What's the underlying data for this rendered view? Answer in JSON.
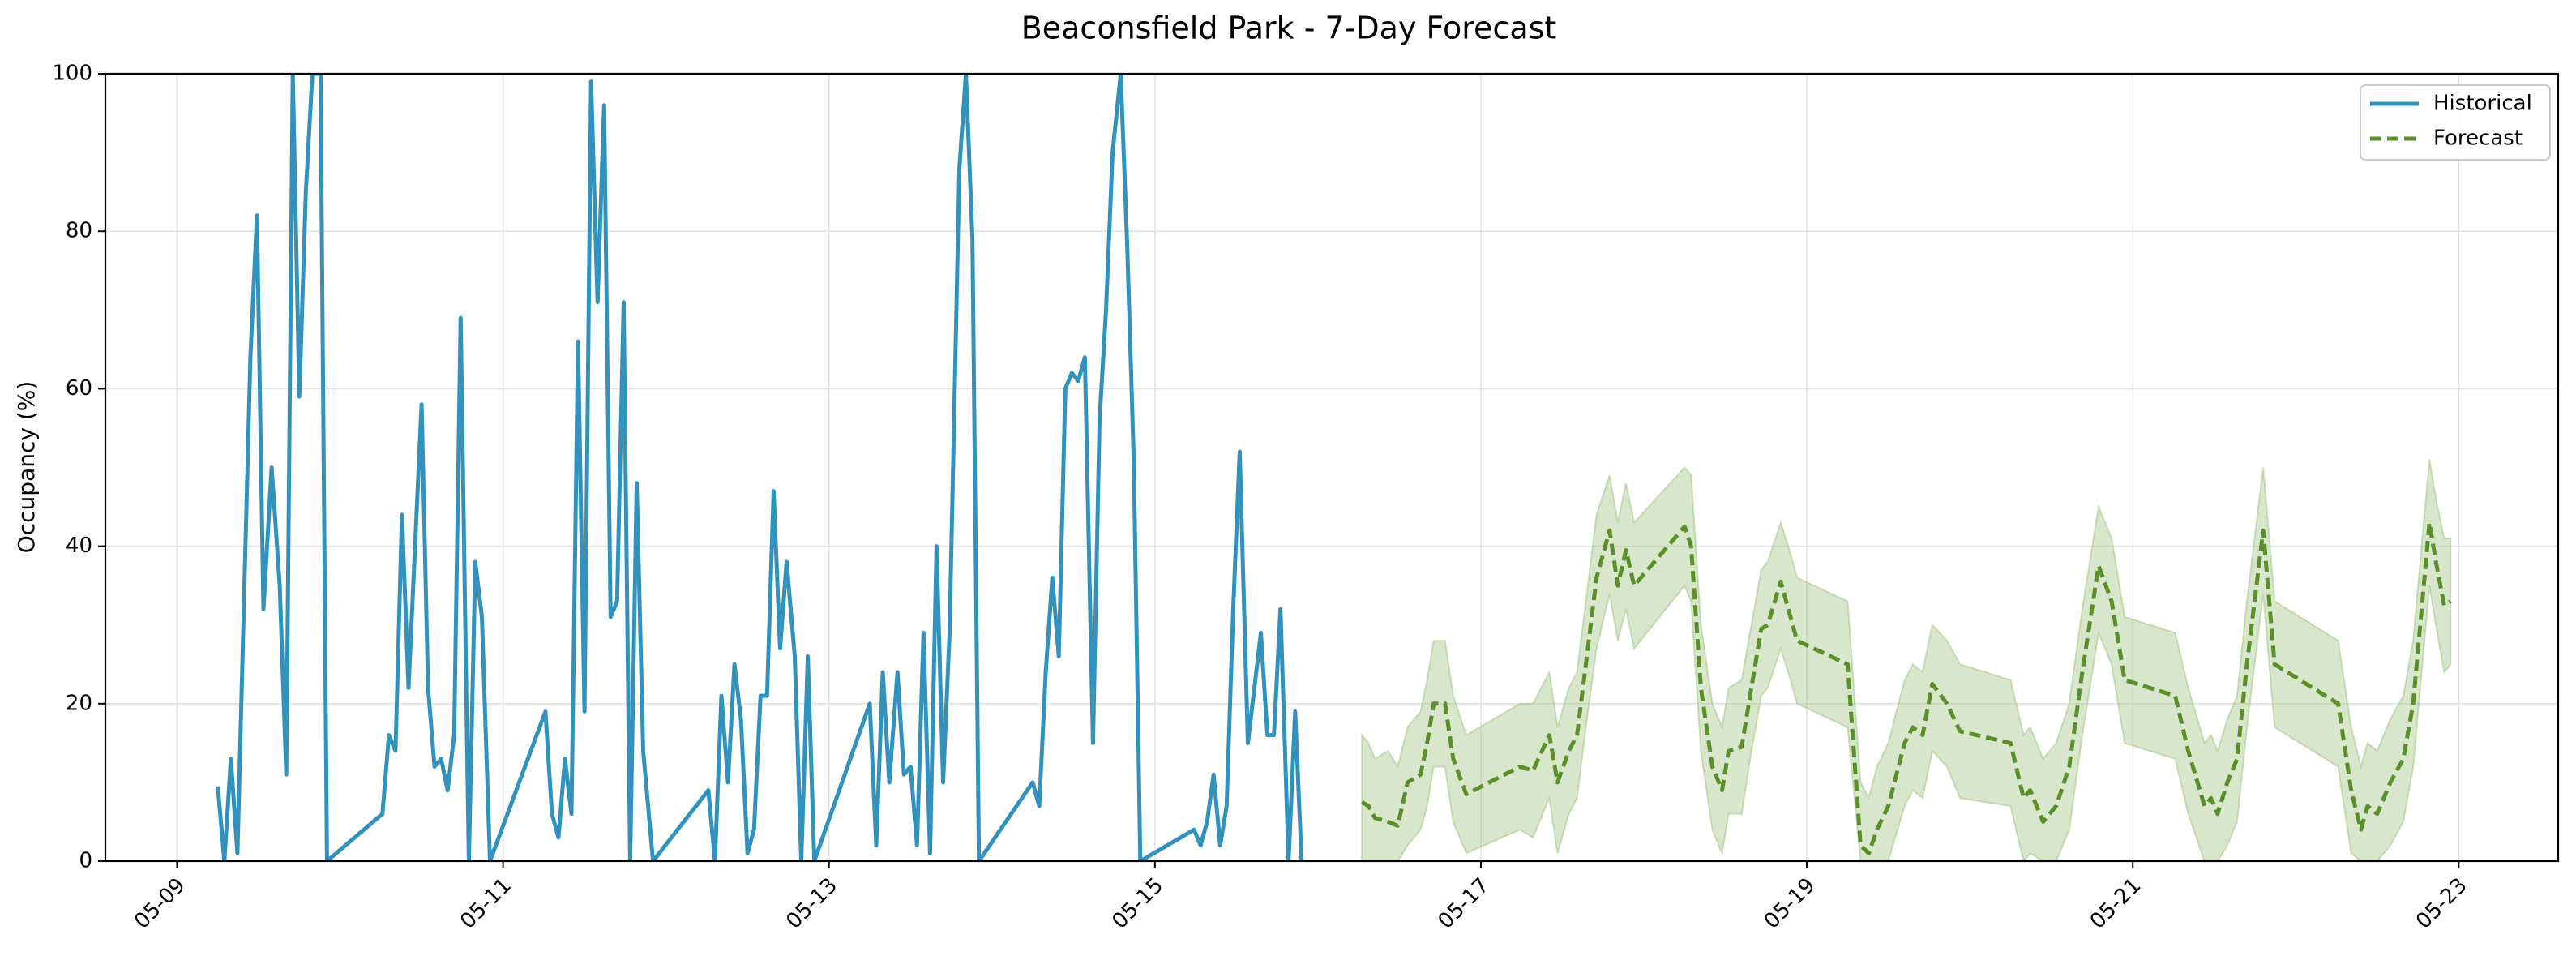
{
  "chart_data": {
    "type": "line",
    "title": "Beaconsfield Park - 7-Day Forecast",
    "y_label": "Occupancy (%)",
    "xlim": [
      8.56,
      23.61
    ],
    "ylim": [
      0,
      100
    ],
    "xticks": [
      {
        "value": 9,
        "label": "05-09"
      },
      {
        "value": 11,
        "label": "05-11"
      },
      {
        "value": 13,
        "label": "05-13"
      },
      {
        "value": 15,
        "label": "05-15"
      },
      {
        "value": 17,
        "label": "05-17"
      },
      {
        "value": 19,
        "label": "05-19"
      },
      {
        "value": 21,
        "label": "05-21"
      },
      {
        "value": 23,
        "label": "05-23"
      }
    ],
    "yticks": [
      0,
      20,
      40,
      60,
      80,
      100
    ],
    "grid": true,
    "legend": "upper right",
    "series": [
      {
        "name": "Historical",
        "color": "#3193bd",
        "dashed": false,
        "x": [
          9.25,
          9.29,
          9.33,
          9.37,
          9.45,
          9.49,
          9.53,
          9.58,
          9.63,
          9.67,
          9.71,
          9.75,
          9.79,
          9.83,
          9.88,
          9.92,
          10.26,
          10.3,
          10.34,
          10.38,
          10.42,
          10.5,
          10.54,
          10.58,
          10.62,
          10.66,
          10.7,
          10.74,
          10.79,
          10.83,
          10.87,
          10.92,
          11.26,
          11.3,
          11.34,
          11.38,
          11.42,
          11.46,
          11.5,
          11.54,
          11.58,
          11.62,
          11.66,
          11.7,
          11.74,
          11.78,
          11.82,
          11.86,
          11.92,
          12.26,
          12.3,
          12.34,
          12.38,
          12.42,
          12.46,
          12.5,
          12.54,
          12.58,
          12.62,
          12.66,
          12.7,
          12.74,
          12.79,
          12.83,
          12.87,
          12.91,
          13.25,
          13.29,
          13.33,
          13.37,
          13.42,
          13.46,
          13.5,
          13.54,
          13.58,
          13.62,
          13.66,
          13.7,
          13.74,
          13.8,
          13.84,
          13.88,
          13.92,
          14.25,
          14.29,
          14.33,
          14.37,
          14.41,
          14.45,
          14.49,
          14.53,
          14.57,
          14.62,
          14.66,
          14.7,
          14.74,
          14.79,
          14.83,
          14.87,
          14.91,
          15.24,
          15.28,
          15.32,
          15.36,
          15.4,
          15.44,
          15.48,
          15.52,
          15.57,
          15.61,
          15.65,
          15.69,
          15.73,
          15.77,
          15.82,
          15.86,
          15.9
        ],
        "values": [
          9.5,
          0,
          13,
          1,
          64,
          82,
          32,
          50,
          35,
          11,
          100,
          59,
          85,
          100,
          100,
          0,
          6,
          16,
          14,
          44,
          22,
          58,
          22,
          12,
          13,
          9,
          16,
          69,
          0,
          38,
          31,
          0,
          19,
          6,
          3,
          13,
          6,
          66,
          19,
          99,
          71,
          96,
          31,
          33,
          71,
          0,
          48,
          14,
          0,
          9,
          0,
          21,
          10,
          25,
          18,
          1,
          4,
          21,
          21,
          47,
          27,
          38,
          26,
          0,
          26,
          0,
          20,
          2,
          24,
          10,
          24,
          11,
          12,
          2,
          29,
          1,
          40,
          10,
          29,
          88,
          100,
          79,
          0,
          10,
          7,
          24,
          36,
          26,
          60,
          62,
          61,
          64,
          15,
          56,
          70,
          90,
          100,
          78,
          51,
          0,
          4,
          2,
          5,
          11,
          2,
          7,
          32,
          52,
          15,
          22,
          29,
          16,
          16,
          32,
          0,
          19,
          0
        ]
      },
      {
        "name": "Forecast",
        "color": "#5b8f2a",
        "dashed": true,
        "band_color": "#9ec27f",
        "x": [
          16.27,
          16.31,
          16.35,
          16.43,
          16.49,
          16.55,
          16.63,
          16.67,
          16.71,
          16.78,
          16.83,
          16.91,
          17.24,
          17.32,
          17.42,
          17.47,
          17.54,
          17.59,
          17.65,
          17.71,
          17.79,
          17.84,
          17.89,
          17.94,
          18.25,
          18.29,
          18.35,
          18.42,
          18.48,
          18.52,
          18.6,
          18.66,
          18.72,
          18.76,
          18.84,
          18.9,
          18.94,
          19.25,
          19.33,
          19.38,
          19.43,
          19.5,
          19.6,
          19.65,
          19.71,
          19.77,
          19.86,
          19.94,
          20.25,
          20.33,
          20.37,
          20.45,
          20.53,
          20.61,
          20.69,
          20.79,
          20.87,
          20.95,
          21.26,
          21.34,
          21.44,
          21.48,
          21.52,
          21.58,
          21.64,
          21.7,
          21.8,
          21.87,
          22.26,
          22.34,
          22.4,
          22.44,
          22.5,
          22.58,
          22.66,
          22.72,
          22.82,
          22.86,
          22.91,
          22.95
        ],
        "values": [
          7.5,
          7,
          5.5,
          5,
          4.5,
          10,
          11,
          15,
          20,
          20,
          13,
          8.5,
          12,
          11.5,
          16,
          10,
          14,
          16,
          26,
          36,
          42,
          35,
          39.5,
          35,
          42.5,
          40,
          22,
          12,
          9,
          14,
          14.5,
          22,
          29.5,
          30,
          35.5,
          31,
          28,
          25,
          2,
          1,
          4,
          7,
          15,
          17,
          16,
          22.5,
          20,
          16.5,
          15,
          8,
          9,
          5,
          7,
          12,
          24,
          37.5,
          33,
          23,
          21,
          14,
          7,
          8,
          6,
          10,
          13,
          25,
          42,
          25,
          20,
          9,
          4,
          7,
          6,
          10,
          13,
          20,
          43,
          38,
          32.5,
          33
        ],
        "lower": [
          0,
          0,
          0,
          0,
          0,
          2,
          4,
          7,
          12,
          12,
          5,
          1,
          4,
          3,
          8,
          1,
          6,
          8,
          18,
          27,
          34,
          28,
          32,
          27,
          35,
          33,
          14,
          4,
          1,
          6,
          6,
          14,
          21,
          22,
          27,
          23,
          20,
          17,
          0,
          0,
          0,
          0,
          7,
          9,
          8,
          14,
          12,
          8,
          7,
          0,
          1,
          0,
          0,
          4,
          16,
          29,
          25,
          15,
          13,
          6,
          0,
          0,
          0,
          2,
          5,
          17,
          34,
          17,
          12,
          1,
          0,
          0,
          0,
          2,
          5,
          12,
          35,
          30,
          24,
          25
        ],
        "upper": [
          16,
          15,
          13,
          14,
          12,
          17,
          19,
          23,
          28,
          28,
          21,
          16,
          20,
          20,
          24,
          17,
          22,
          24,
          34,
          44,
          49,
          43,
          48,
          43,
          50,
          49,
          30,
          20,
          17,
          22,
          23,
          30,
          37,
          38,
          43,
          39,
          36,
          33,
          10,
          8,
          12,
          15,
          23,
          25,
          24,
          30,
          28,
          25,
          23,
          16,
          17,
          13,
          15,
          20,
          32,
          45,
          41,
          31,
          29,
          22,
          15,
          16,
          14,
          18,
          21,
          33,
          50,
          33,
          28,
          17,
          12,
          15,
          14,
          18,
          21,
          28,
          51,
          46,
          41,
          41
        ]
      }
    ]
  }
}
